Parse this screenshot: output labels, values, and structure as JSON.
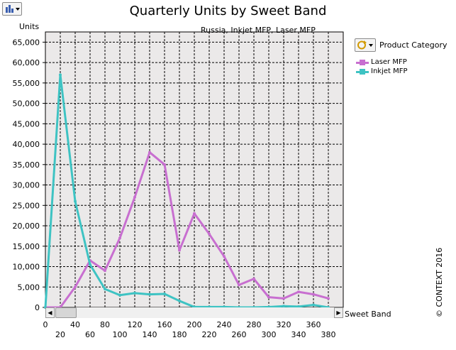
{
  "header": {
    "title": "Quarterly Units by Sweet Band",
    "subtitle": "Russia, Inkjet MFP, Laser MFP",
    "units_label": "Units"
  },
  "legend": {
    "title": "Product Category",
    "items": [
      {
        "label": "Laser MFP",
        "color": "#c86fd0"
      },
      {
        "label": "Inkjet MFP",
        "color": "#3ec3c3"
      }
    ]
  },
  "x_axis_title": "Sweet Band",
  "copyright": "© CONTEXT 2016",
  "icons": {
    "toolbar": "chart-type-icon",
    "legend_button": "rotate-icon",
    "scroll_left": "arrow-left-icon",
    "scroll_right": "arrow-right-icon"
  },
  "chart_data": {
    "type": "line",
    "title": "Quarterly Units by Sweet Band",
    "subtitle": "Russia, Inkjet MFP, Laser MFP",
    "ylabel": "Units",
    "xlabel": "Sweet Band",
    "x": [
      0,
      20,
      40,
      60,
      80,
      100,
      120,
      140,
      160,
      180,
      200,
      220,
      240,
      260,
      280,
      300,
      320,
      340,
      360,
      380
    ],
    "x_tick_labels_top": [
      "0",
      "40",
      "80",
      "120",
      "160",
      "200",
      "240",
      "280",
      "320",
      "360"
    ],
    "x_tick_labels_bottom": [
      "20",
      "60",
      "100",
      "140",
      "180",
      "220",
      "260",
      "300",
      "340",
      "380"
    ],
    "ylim": [
      0,
      67500
    ],
    "y_ticks": [
      0,
      5000,
      10000,
      15000,
      20000,
      25000,
      30000,
      35000,
      40000,
      45000,
      50000,
      55000,
      60000,
      65000
    ],
    "y_tick_labels": [
      "0",
      "5,000",
      "10,000",
      "15,000",
      "20,000",
      "25,000",
      "30,000",
      "35,000",
      "40,000",
      "45,000",
      "50,000",
      "55,000",
      "60,000",
      "65,000"
    ],
    "grid": true,
    "legend_position": "top-right",
    "series": [
      {
        "name": "Laser MFP",
        "color": "#c86fd0",
        "values": [
          0,
          0,
          5000,
          11500,
          9000,
          17000,
          27000,
          38000,
          35000,
          14000,
          23000,
          18000,
          12500,
          5500,
          7000,
          2500,
          2200,
          3800,
          3200,
          2200
        ]
      },
      {
        "name": "Inkjet MFP",
        "color": "#3ec3c3",
        "values": [
          0,
          57000,
          26000,
          10500,
          4500,
          3000,
          3500,
          3200,
          3300,
          1600,
          100,
          100,
          100,
          0,
          0,
          100,
          300,
          200,
          600,
          0
        ]
      }
    ]
  }
}
